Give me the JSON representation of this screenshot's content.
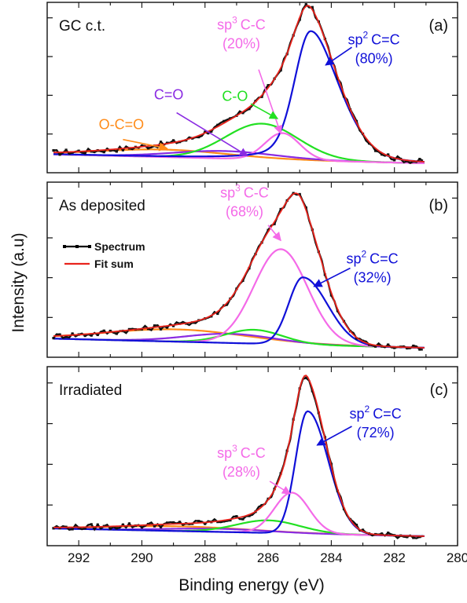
{
  "chart_data": {
    "type": "line",
    "shared_x_axis": {
      "label": "Binding energy (eV)",
      "xlim": [
        293,
        280
      ],
      "reversed": true,
      "major_ticks": [
        292,
        290,
        288,
        286,
        284,
        282,
        280
      ],
      "tick_labels": [
        "292",
        "290",
        "288",
        "286",
        "284",
        "282",
        "280"
      ]
    },
    "ylabel": "Intensity (a.u)",
    "legend": {
      "placement": "left",
      "panel": 1,
      "entries": [
        {
          "label": "Spectrum",
          "color": "#000000"
        },
        {
          "label": "Fit sum",
          "color": "#e8231c"
        }
      ]
    },
    "component_colors": {
      "spectrum": "#111111",
      "fit_sum": "#e8231c",
      "sp2": "#1010d8",
      "sp3": "#f46ae8",
      "c_o": "#22e022",
      "c_eq_o": "#8a2be2",
      "o_c_eq_o": "#ff8c1a"
    },
    "panels": [
      {
        "sample_label": "GC c.t.",
        "panel_label": "(a)",
        "ylim": [
          0,
          1.05
        ],
        "baseline": {
          "start": 0.06,
          "end": 0.0
        },
        "components": [
          {
            "key": "sp2",
            "center": 284.65,
            "height": 0.87,
            "sigma": 0.5,
            "gamma": 0.35,
            "tail_right": 0.75
          },
          {
            "key": "sp3",
            "center": 285.55,
            "height": 0.18,
            "sigma": 0.55
          },
          {
            "key": "c_o",
            "center": 286.2,
            "height": 0.24,
            "sigma": 1.15
          },
          {
            "key": "c_eq_o",
            "center": 287.4,
            "height": 0.05,
            "sigma": 1.6
          },
          {
            "key": "o_c_eq_o",
            "center": 289.3,
            "height": 0.05,
            "sigma": 2.0
          }
        ],
        "annotations": [
          {
            "key": "sp2",
            "line1": "C=C",
            "sup_prefix": "sp",
            "sup": "2",
            "line2": "(80%)",
            "text_x": 282.65,
            "text_y": 0.8,
            "arrow_to": [
              284.18,
              0.66
            ],
            "arrow_from": [
              283.35,
              0.78
            ]
          },
          {
            "key": "sp3",
            "line1": "C-C",
            "sup_prefix": "sp",
            "sup": "3",
            "line2": "(20%)",
            "text_x": 286.85,
            "text_y": 0.9,
            "arrow_to": [
              285.6,
              0.2
            ],
            "arrow_from": [
              286.3,
              0.63
            ]
          },
          {
            "key": "c_o",
            "line1": "C-O",
            "text_x": 287.05,
            "text_y": 0.42,
            "arrow_to": [
              285.7,
              0.3
            ],
            "arrow_from": [
              286.55,
              0.4
            ]
          },
          {
            "key": "c_eq_o",
            "line1": "C=O",
            "text_x": 289.15,
            "text_y": 0.43,
            "arrow_to": [
              286.65,
              0.05
            ],
            "arrow_from": [
              288.9,
              0.34
            ]
          },
          {
            "key": "o_c_eq_o",
            "line1": "O-C=O",
            "text_x": 290.65,
            "text_y": 0.23,
            "arrow_to": [
              289.2,
              0.1
            ],
            "arrow_from": [
              290.6,
              0.16
            ]
          }
        ]
      },
      {
        "sample_label": "As deposited",
        "panel_label": "(b)",
        "ylim": [
          0,
          1.05
        ],
        "baseline": {
          "start": 0.06,
          "end": 0.0
        },
        "components": [
          {
            "key": "sp3",
            "center": 285.6,
            "height": 0.62,
            "sigma": 0.85
          },
          {
            "key": "sp2",
            "center": 284.9,
            "height": 0.44,
            "sigma": 0.45,
            "tail_right": 0.55
          },
          {
            "key": "c_o",
            "center": 286.45,
            "height": 0.09,
            "sigma": 0.9
          },
          {
            "key": "c_eq_o",
            "center": 287.2,
            "height": 0.06,
            "sigma": 1.4
          },
          {
            "key": "o_c_eq_o",
            "center": 288.9,
            "height": 0.08,
            "sigma": 2.2
          }
        ],
        "annotations": [
          {
            "key": "sp2",
            "line1": "C=C",
            "sup_prefix": "sp",
            "sup": "2",
            "line2": "(32%)",
            "text_x": 282.7,
            "text_y": 0.55,
            "arrow_to": [
              284.55,
              0.4
            ],
            "arrow_from": [
              283.4,
              0.52
            ]
          },
          {
            "key": "sp3",
            "line1": "C-C",
            "sup_prefix": "sp",
            "sup": "3",
            "line2": "(68%)",
            "text_x": 286.75,
            "text_y": 0.98,
            "arrow_to": [
              285.6,
              0.7
            ],
            "arrow_from": [
              286.0,
              0.8
            ]
          }
        ]
      },
      {
        "sample_label": "Irradiated",
        "panel_label": "(c)",
        "ylim": [
          0,
          1.05
        ],
        "baseline": {
          "start": 0.05,
          "end": 0.0
        },
        "components": [
          {
            "key": "sp2",
            "center": 284.75,
            "height": 0.78,
            "sigma": 0.38,
            "tail_right": 0.45
          },
          {
            "key": "sp3",
            "center": 285.25,
            "height": 0.26,
            "sigma": 0.55
          },
          {
            "key": "c_o",
            "center": 286.0,
            "height": 0.08,
            "sigma": 1.0
          },
          {
            "key": "c_eq_o",
            "center": 287.6,
            "height": 0.02,
            "sigma": 1.6
          },
          {
            "key": "o_c_eq_o",
            "center": 288.8,
            "height": 0.03,
            "sigma": 2.2
          }
        ],
        "annotations": [
          {
            "key": "sp2",
            "line1": "C=C",
            "sup_prefix": "sp",
            "sup": "2",
            "line2": "(72%)",
            "text_x": 282.6,
            "text_y": 0.75,
            "arrow_to": [
              284.45,
              0.58
            ],
            "arrow_from": [
              283.35,
              0.7
            ]
          },
          {
            "key": "sp3",
            "line1": "C-C",
            "sup_prefix": "sp",
            "sup": "3",
            "line2": "(28%)",
            "text_x": 286.85,
            "text_y": 0.5,
            "arrow_to": [
              285.3,
              0.27
            ],
            "arrow_from": [
              285.95,
              0.35
            ]
          }
        ]
      }
    ]
  }
}
